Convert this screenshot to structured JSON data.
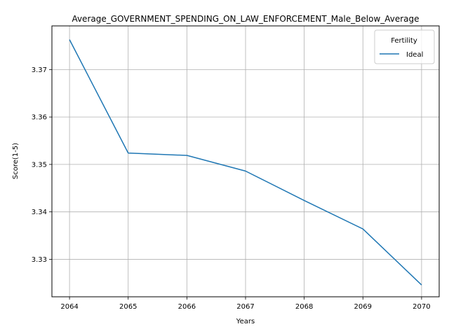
{
  "chart_data": {
    "type": "line",
    "title": "Average_GOVERNMENT_SPENDING_ON_LAW_ENFORCEMENT_Male_Below_Average",
    "xlabel": "Years",
    "ylabel": "Score(1-5)",
    "x": [
      2064,
      2065,
      2066,
      2067,
      2068,
      2069,
      2070
    ],
    "x_ticks": [
      "2064",
      "2065",
      "2066",
      "2067",
      "2068",
      "2069",
      "2070"
    ],
    "y_ticks": [
      "3.33",
      "3.34",
      "3.35",
      "3.36",
      "3.37"
    ],
    "xlim": [
      2063.7,
      2070.3
    ],
    "ylim": [
      3.3221,
      3.3792
    ],
    "grid": true,
    "legend": {
      "title": "Fertility",
      "placement": "top-right"
    },
    "series": [
      {
        "name": "Ideal",
        "color": "#1f77b4",
        "values": [
          3.3763,
          3.3524,
          3.3519,
          3.3486,
          3.3424,
          3.3364,
          3.3246
        ]
      }
    ]
  }
}
